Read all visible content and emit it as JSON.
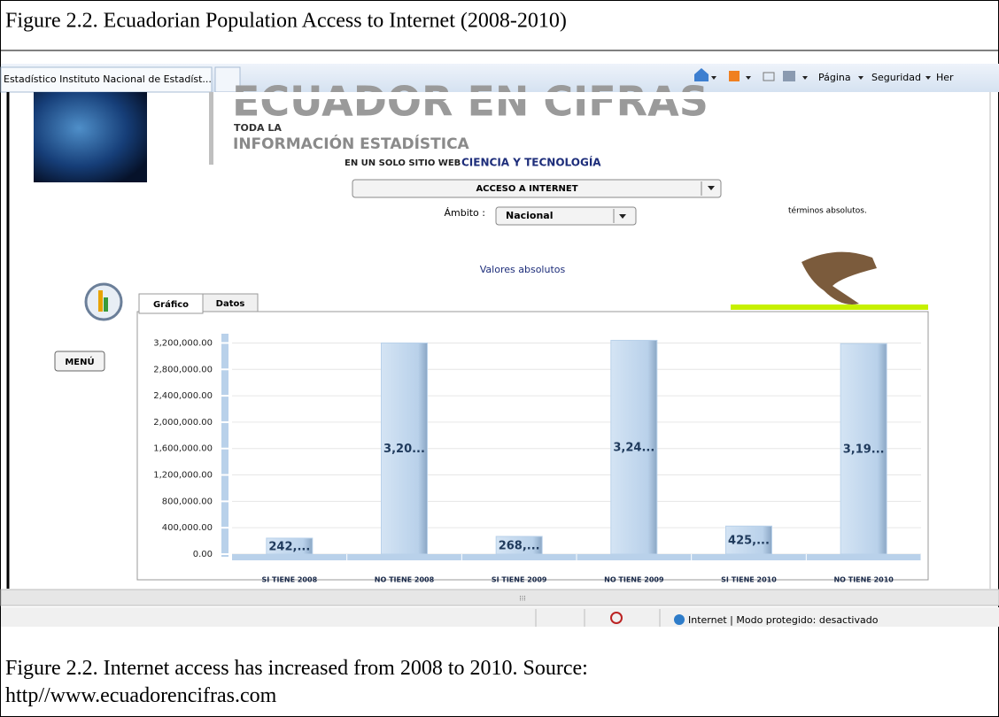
{
  "figure_title": "Figure 2.2. Ecuadorian Population Access to Internet (2008-2010)",
  "browser": {
    "tab_title": "Estadístico Instituto Nacional de Estadíst...",
    "toolbar": [
      "Página",
      "Seguridad",
      "Her"
    ],
    "status": "Internet | Modo protegido: desactivado"
  },
  "site": {
    "logo": "ECUADOR EN CIFRAS",
    "tagline_1": "TODA LA",
    "tagline_2": "INFORMACIÓN ESTADÍSTICA",
    "tagline_3": "EN UN SOLO SITIO WEB",
    "section": "CIENCIA Y TECNOLOGÍA",
    "indicator": "ACCESO A INTERNET",
    "scope_label": "Ámbito :",
    "scope": "Nacional",
    "note": "términos absolutos.",
    "chart_heading": "Valores absolutos",
    "tabs": [
      "Gráfico",
      "Datos"
    ],
    "menu": "MENÚ"
  },
  "chart_data": {
    "type": "bar",
    "categories": [
      "SI TIENE 2008",
      "NO TIENE 2008",
      "SI TIENE 2009",
      "NO TIENE 2009",
      "SI TIENE 2010",
      "NO TIENE 2010"
    ],
    "values": [
      242000,
      3200000,
      268000,
      3240000,
      425000,
      3190000
    ],
    "value_labels": [
      "242,...",
      "3,20...",
      "268,...",
      "3,24...",
      "425,...",
      "3,19..."
    ],
    "color": "#b9d1ea",
    "ylim": [
      0,
      3300000
    ],
    "yticks": [
      {
        "value": 0,
        "label": "0.00"
      },
      {
        "value": 400000,
        "label": "400,000.00"
      },
      {
        "value": 800000,
        "label": "800,000.00"
      },
      {
        "value": 1200000,
        "label": "1,200,000.00"
      },
      {
        "value": 1600000,
        "label": "1,600,000.00"
      },
      {
        "value": 2000000,
        "label": "2,000,000.00"
      },
      {
        "value": 2400000,
        "label": "2,400,000.00"
      },
      {
        "value": 2800000,
        "label": "2,800,000.00"
      },
      {
        "value": 3200000,
        "label": "3,200,000.00"
      }
    ],
    "grid": true
  },
  "caption": "Figure 2.2. Internet access has increased from 2008 to 2010. Source: http//www.ecuadorencifras.com"
}
